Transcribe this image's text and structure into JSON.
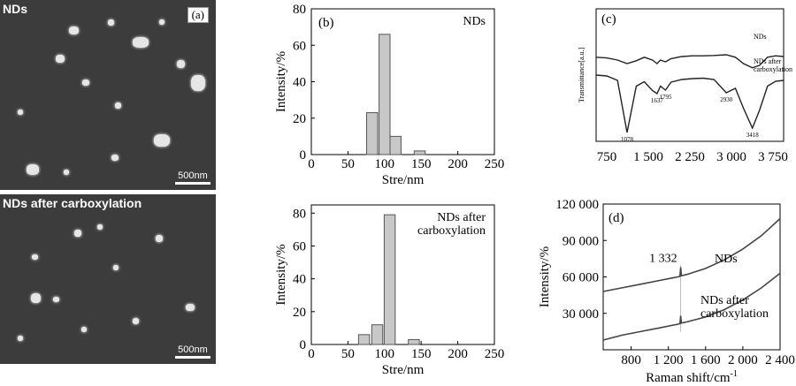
{
  "sem_top": {
    "label": "NDs",
    "panel": "(a)",
    "scale": "500nm"
  },
  "sem_bottom": {
    "label": "NDs after carboxylation",
    "scale": "500nm"
  },
  "chart_data": [
    {
      "id": "b_top",
      "type": "bar",
      "panel": "(b)",
      "annotation": "NDs",
      "xlabel": "Stre/nm",
      "ylabel": "Intensity/%",
      "xlim": [
        0,
        250
      ],
      "ylim": [
        0,
        80
      ],
      "xticks": [
        0,
        50,
        100,
        150,
        200,
        250
      ],
      "yticks": [
        0,
        20,
        40,
        60,
        80
      ],
      "bar_width": 15,
      "x": [
        83,
        100,
        115,
        148
      ],
      "values": [
        23,
        66,
        10,
        2
      ],
      "color": "#c8c8c8"
    },
    {
      "id": "b_bottom",
      "type": "bar",
      "annotation": "NDs after\ncarboxylation",
      "xlabel": "Stre/nm",
      "ylabel": "Intensity/%",
      "xlim": [
        0,
        250
      ],
      "ylim": [
        0,
        85
      ],
      "xticks": [
        0,
        50,
        100,
        150,
        200,
        250
      ],
      "yticks": [
        0,
        20,
        40,
        60,
        80
      ],
      "bar_width": 15,
      "x": [
        72,
        90,
        107,
        140
      ],
      "values": [
        6,
        12,
        79,
        3
      ],
      "color": "#c8c8c8"
    },
    {
      "id": "c",
      "type": "line",
      "panel": "(c)",
      "ylabel": "Transmittance[a.u.]",
      "xtick_labels": [
        "750",
        "1 500",
        "2 250",
        "3 000",
        "3 750"
      ],
      "xlim": [
        500,
        4000
      ],
      "series": [
        {
          "name": "NDs",
          "x": [
            500,
            700,
            900,
            1078,
            1250,
            1400,
            1550,
            1637,
            1700,
            1795,
            1900,
            2100,
            2300,
            2500,
            2700,
            2930,
            3100,
            3250,
            3418,
            3550,
            3700,
            3850,
            4000
          ],
          "y": [
            0.62,
            0.64,
            0.7,
            0.8,
            0.72,
            0.62,
            0.7,
            0.8,
            0.7,
            0.75,
            0.66,
            0.6,
            0.58,
            0.58,
            0.57,
            0.55,
            0.62,
            0.8,
            0.92,
            0.85,
            0.62,
            0.58,
            0.6
          ]
        },
        {
          "name": "NDs after\ncarboxylation",
          "x": [
            500,
            700,
            900,
            1078,
            1250,
            1400,
            1550,
            1637,
            1700,
            1795,
            1900,
            2100,
            2300,
            2500,
            2700,
            2930,
            3100,
            3250,
            3418,
            3550,
            3700,
            3850,
            4000
          ],
          "y": [
            0.3,
            0.32,
            0.42,
            1.6,
            0.55,
            0.45,
            0.65,
            0.72,
            0.55,
            0.64,
            0.46,
            0.4,
            0.38,
            0.37,
            0.4,
            0.7,
            0.6,
            1.05,
            1.5,
            1.1,
            0.55,
            0.44,
            0.42
          ]
        }
      ],
      "peak_labels": [
        {
          "x": 1078,
          "label": "1078"
        },
        {
          "x": 1637,
          "label": "1637"
        },
        {
          "x": 1795,
          "label": "1795"
        },
        {
          "x": 2930,
          "label": "2930"
        },
        {
          "x": 3418,
          "label": "3418"
        }
      ]
    },
    {
      "id": "d",
      "type": "line",
      "panel": "(d)",
      "xlabel": "Raman shift/cm",
      "xlabel_sup": "-1",
      "ylabel": "Intensity/%",
      "xlim": [
        500,
        2400
      ],
      "ylim": [
        0,
        120000
      ],
      "xtick_labels": [
        "800",
        "1 200",
        "1 600",
        "2 000",
        "2 400"
      ],
      "xtick_values": [
        800,
        1200,
        1600,
        2000,
        2400
      ],
      "ytick_labels": [
        "30 000",
        "60 000",
        "90 000",
        "120 000"
      ],
      "ytick_values": [
        30000,
        60000,
        90000,
        120000
      ],
      "peak_label": "1 332",
      "peak_x": 1332,
      "series": [
        {
          "name": "NDs",
          "x": [
            500,
            700,
            900,
            1100,
            1300,
            1325,
            1332,
            1340,
            1400,
            1600,
            1800,
            2000,
            2200,
            2400
          ],
          "y": [
            48000,
            51000,
            54000,
            57000,
            60000,
            60500,
            68000,
            61000,
            62000,
            67000,
            74000,
            83000,
            94000,
            108000
          ]
        },
        {
          "name": "NDs after\ncarboxylation",
          "x": [
            500,
            700,
            900,
            1100,
            1300,
            1325,
            1332,
            1340,
            1400,
            1600,
            1800,
            2000,
            2200,
            2400
          ],
          "y": [
            8000,
            12000,
            15000,
            18000,
            21000,
            21500,
            28000,
            22000,
            23000,
            27000,
            33000,
            41000,
            51000,
            63000
          ]
        }
      ]
    }
  ]
}
